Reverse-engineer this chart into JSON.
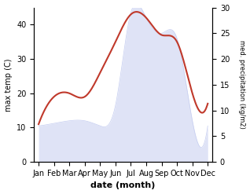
{
  "months": [
    "Jan",
    "Feb",
    "Mar",
    "Apr",
    "May",
    "Jun",
    "Jul",
    "Aug",
    "Sep",
    "Oct",
    "Nov",
    "Dec"
  ],
  "temperature": [
    11,
    19,
    20,
    19,
    26,
    35,
    43,
    42,
    37,
    35,
    20,
    17
  ],
  "precipitation_right": [
    7,
    7.5,
    8,
    8,
    7,
    11,
    29,
    28,
    25,
    24,
    8,
    7
  ],
  "temp_color": "#c0392b",
  "precip_fill_color": "#c5cdf0",
  "left_ylim": [
    0,
    45
  ],
  "right_ylim": [
    0,
    30
  ],
  "left_ylabel": "max temp (C)",
  "right_ylabel": "med. precipitation (kg/m2)",
  "xlabel": "date (month)",
  "fig_width": 3.18,
  "fig_height": 2.47,
  "dpi": 100
}
